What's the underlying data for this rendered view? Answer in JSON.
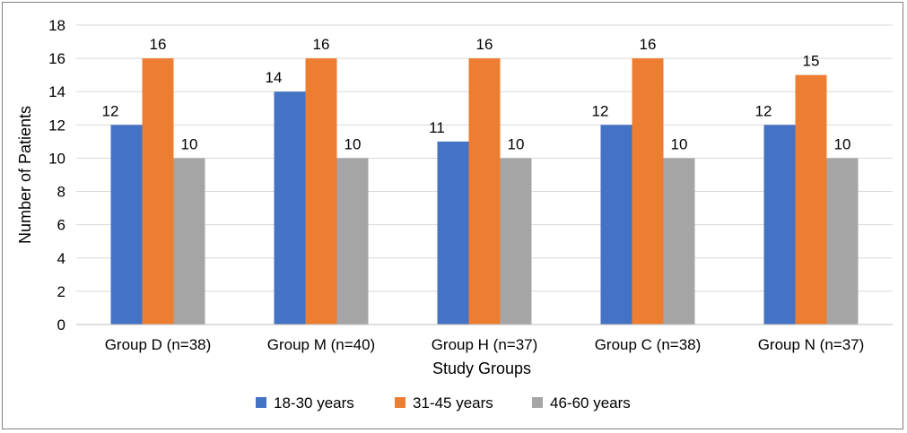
{
  "chart_data": {
    "type": "bar",
    "categories": [
      "Group D (n=38)",
      "Group M (n=40)",
      "Group H (n=37)",
      "Group C (n=38)",
      "Group N (n=37)"
    ],
    "series": [
      {
        "name": "18-30 years",
        "values": [
          12,
          14,
          11,
          12,
          12
        ],
        "color": "#4472c4"
      },
      {
        "name": "31-45 years",
        "values": [
          16,
          16,
          16,
          16,
          15
        ],
        "color": "#ed7d31"
      },
      {
        "name": "46-60 years",
        "values": [
          10,
          10,
          10,
          10,
          10
        ],
        "color": "#a5a5a5"
      }
    ],
    "title": "",
    "xlabel": "Study Groups",
    "ylabel": "Number of Patients",
    "ylim": [
      0,
      18
    ],
    "yticks": [
      0,
      2,
      4,
      6,
      8,
      10,
      12,
      14,
      16,
      18
    ],
    "grid": true,
    "legend_position": "bottom",
    "data_labels": true
  }
}
